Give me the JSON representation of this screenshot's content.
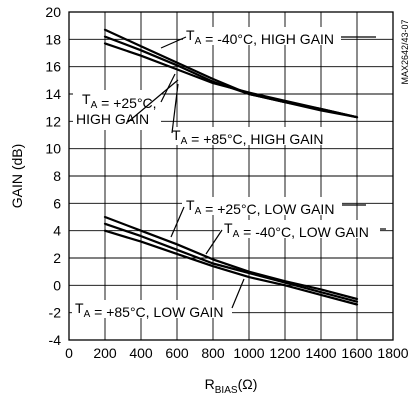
{
  "chart_data": {
    "type": "line",
    "title": "",
    "code": "MAX2642/43-07",
    "xlabel": {
      "main": "R",
      "sub": "BIAS",
      "unit": "(Ω)"
    },
    "ylabel": "GAIN (dB)",
    "xlim": [
      0,
      1800
    ],
    "ylim": [
      -4,
      20
    ],
    "xticks": [
      0,
      200,
      400,
      600,
      800,
      1000,
      1200,
      1400,
      1600,
      1800
    ],
    "yticks": [
      -4,
      -2,
      0,
      2,
      4,
      6,
      8,
      10,
      12,
      14,
      16,
      18,
      20
    ],
    "grid": true,
    "series": [
      {
        "name": "TA = -40°C, HIGH GAIN",
        "label": {
          "lines": [
            [
              {
                "t": "T"
              },
              {
                "t": "A",
                "sub": true
              },
              {
                "t": " = -40°C, HIGH GAIN"
              }
            ]
          ]
        },
        "x": [
          200,
          400,
          600,
          800,
          1000,
          1200,
          1400,
          1600
        ],
        "y": [
          18.7,
          17.5,
          16.3,
          15.1,
          14.0,
          13.4,
          12.9,
          12.3
        ]
      },
      {
        "name": "TA = +25°C, HIGH GAIN",
        "label": {
          "lines": [
            [
              {
                "t": "T"
              },
              {
                "t": "A",
                "sub": true
              },
              {
                "t": " = +25°C,"
              }
            ],
            [
              {
                "t": "HIGH GAIN"
              }
            ]
          ]
        },
        "x": [
          200,
          400,
          600,
          800,
          1000,
          1200,
          1400,
          1600
        ],
        "y": [
          18.2,
          17.2,
          16.1,
          14.9,
          14.0,
          13.4,
          12.8,
          12.3
        ]
      },
      {
        "name": "TA = +85°C, HIGH GAIN",
        "label": {
          "lines": [
            [
              {
                "t": "T"
              },
              {
                "t": "A",
                "sub": true
              },
              {
                "t": " = +85°C, HIGH GAIN"
              }
            ]
          ]
        },
        "x": [
          200,
          400,
          600,
          800,
          1000,
          1200,
          1400,
          1600
        ],
        "y": [
          17.7,
          16.8,
          15.8,
          14.8,
          14.1,
          13.5,
          12.9,
          12.3
        ]
      },
      {
        "name": "TA = +25°C, LOW GAIN",
        "label": {
          "lines": [
            [
              {
                "t": "T"
              },
              {
                "t": "A",
                "sub": true
              },
              {
                "t": " = +25°C, LOW GAIN"
              }
            ]
          ]
        },
        "x": [
          200,
          400,
          600,
          800,
          1000,
          1200,
          1400,
          1600
        ],
        "y": [
          5.0,
          4.0,
          3.0,
          1.9,
          1.0,
          0.3,
          -0.3,
          -1.0
        ]
      },
      {
        "name": "TA = -40°C, LOW GAIN",
        "label": {
          "lines": [
            [
              {
                "t": "T"
              },
              {
                "t": "A",
                "sub": true
              },
              {
                "t": " = -40°C, LOW GAIN"
              }
            ]
          ]
        },
        "x": [
          200,
          400,
          600,
          800,
          1000,
          1200,
          1400,
          1600
        ],
        "y": [
          4.5,
          3.6,
          2.6,
          1.6,
          0.9,
          0.2,
          -0.5,
          -1.2
        ]
      },
      {
        "name": "TA = +85°C, LOW GAIN",
        "label": {
          "lines": [
            [
              {
                "t": "T"
              },
              {
                "t": "A",
                "sub": true
              },
              {
                "t": " = +85°C, LOW GAIN"
              }
            ]
          ]
        },
        "x": [
          200,
          400,
          600,
          800,
          1000,
          1200,
          1400,
          1600
        ],
        "y": [
          4.0,
          3.2,
          2.3,
          1.4,
          0.6,
          0.0,
          -0.7,
          -1.4
        ]
      }
    ]
  }
}
